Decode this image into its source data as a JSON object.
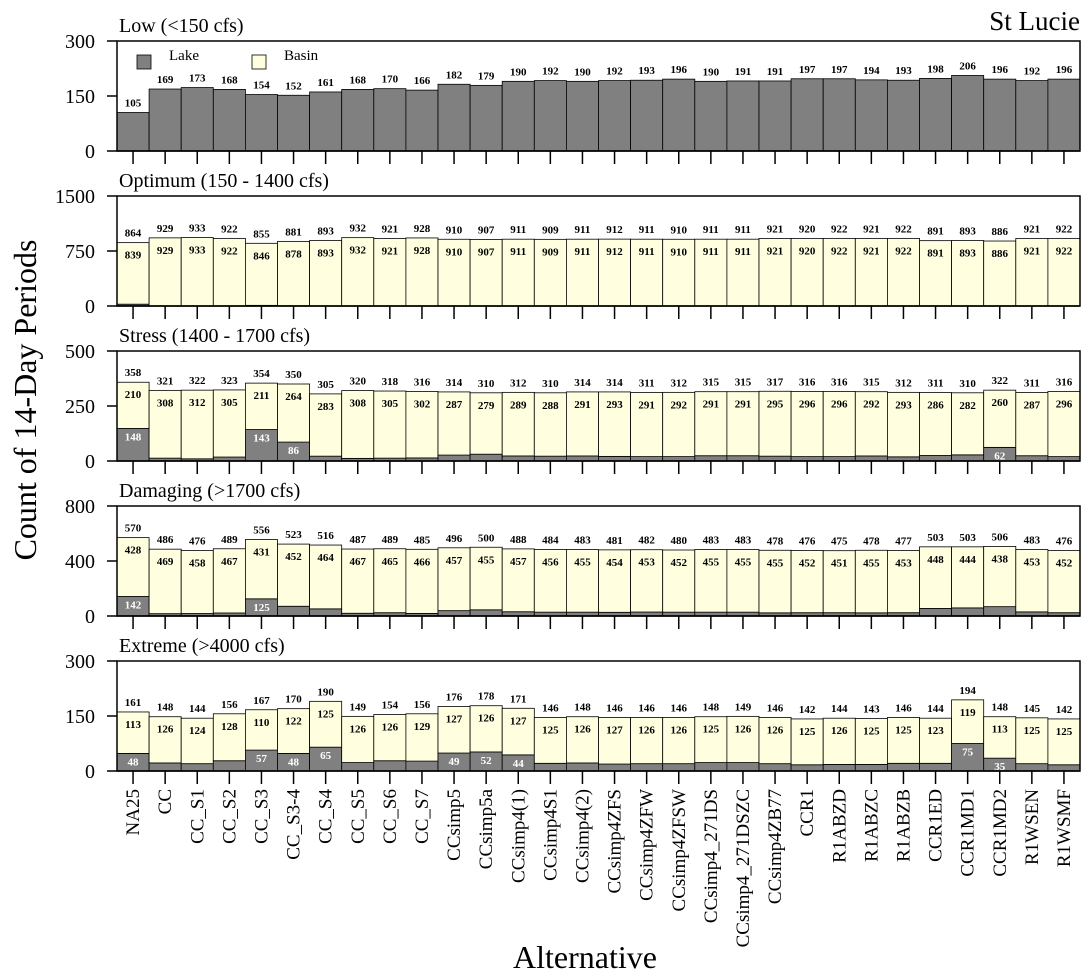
{
  "figure": {
    "title": "St Lucie",
    "ylabel": "Count of 14-Day Periods",
    "xlabel": "Alternative"
  },
  "chart_data": [
    {
      "type": "bar",
      "title": "Low (<150 cfs)",
      "ylim": [
        0,
        300
      ],
      "yticks": [
        0,
        150,
        300
      ],
      "legend": "upper left",
      "totals": [
        105,
        169,
        173,
        168,
        154,
        152,
        161,
        168,
        170,
        166,
        182,
        179,
        190,
        192,
        190,
        192,
        193,
        196,
        190,
        191,
        191,
        197,
        197,
        194,
        193,
        198,
        206,
        196,
        192,
        196
      ],
      "series": [
        {
          "name": "Lake",
          "color": "#808080",
          "values": [
            105,
            169,
            173,
            168,
            154,
            152,
            161,
            168,
            170,
            166,
            182,
            179,
            190,
            192,
            190,
            192,
            193,
            196,
            190,
            191,
            191,
            197,
            197,
            194,
            193,
            198,
            206,
            196,
            192,
            196
          ]
        },
        {
          "name": "Basin",
          "color": "#ffffe0",
          "values": [
            0,
            0,
            0,
            0,
            0,
            0,
            0,
            0,
            0,
            0,
            0,
            0,
            0,
            0,
            0,
            0,
            0,
            0,
            0,
            0,
            0,
            0,
            0,
            0,
            0,
            0,
            0,
            0,
            0,
            0
          ]
        }
      ]
    },
    {
      "type": "bar",
      "title": "Optimum (150 - 1400 cfs)",
      "ylim": [
        0,
        1500
      ],
      "yticks": [
        0,
        750,
        1500
      ],
      "totals": [
        864,
        929,
        933,
        922,
        855,
        881,
        893,
        932,
        921,
        928,
        910,
        907,
        911,
        909,
        911,
        912,
        911,
        910,
        911,
        911,
        921,
        920,
        922,
        921,
        922,
        891,
        893,
        886,
        921,
        922
      ],
      "series": [
        {
          "name": "Lake",
          "color": "#808080",
          "values": [
            25,
            0,
            0,
            0,
            9,
            3,
            0,
            0,
            0,
            0,
            0,
            0,
            0,
            0,
            0,
            0,
            0,
            0,
            0,
            0,
            0,
            0,
            0,
            0,
            0,
            0,
            0,
            0,
            0,
            0
          ]
        },
        {
          "name": "Basin",
          "color": "#ffffe0",
          "show_value_labels": true,
          "values": [
            839,
            929,
            933,
            922,
            846,
            878,
            893,
            932,
            921,
            928,
            910,
            907,
            911,
            909,
            911,
            912,
            911,
            910,
            911,
            911,
            921,
            920,
            922,
            921,
            922,
            891,
            893,
            886,
            921,
            922
          ]
        }
      ]
    },
    {
      "type": "bar",
      "title": "Stress (1400 - 1700 cfs)",
      "ylim": [
        0,
        500
      ],
      "yticks": [
        0,
        250,
        500
      ],
      "totals": [
        358,
        321,
        322,
        323,
        354,
        350,
        305,
        320,
        318,
        316,
        314,
        310,
        312,
        310,
        314,
        314,
        311,
        312,
        315,
        315,
        317,
        316,
        316,
        315,
        312,
        311,
        310,
        322,
        311,
        316
      ],
      "series": [
        {
          "name": "Lake",
          "color": "#808080",
          "values": [
            148,
            13,
            10,
            18,
            143,
            86,
            22,
            12,
            13,
            14,
            27,
            31,
            23,
            22,
            23,
            21,
            20,
            20,
            24,
            24,
            22,
            20,
            20,
            23,
            19,
            25,
            28,
            62,
            24,
            20
          ],
          "value_labels": [
            "148",
            null,
            null,
            null,
            "143",
            "86",
            null,
            null,
            null,
            null,
            null,
            null,
            null,
            null,
            null,
            null,
            null,
            null,
            null,
            null,
            null,
            null,
            null,
            null,
            null,
            null,
            null,
            "62",
            null,
            null
          ]
        },
        {
          "name": "Basin",
          "color": "#ffffe0",
          "show_value_labels": true,
          "values": [
            210,
            308,
            312,
            305,
            211,
            264,
            283,
            308,
            305,
            302,
            287,
            279,
            289,
            288,
            291,
            293,
            291,
            292,
            291,
            291,
            295,
            296,
            296,
            292,
            293,
            286,
            282,
            260,
            287,
            296
          ]
        }
      ]
    },
    {
      "type": "bar",
      "title": "Damaging (>1700 cfs)",
      "ylim": [
        0,
        800
      ],
      "yticks": [
        0,
        400,
        800
      ],
      "totals": [
        570,
        486,
        476,
        489,
        556,
        523,
        516,
        487,
        489,
        485,
        496,
        500,
        488,
        484,
        483,
        481,
        482,
        480,
        483,
        483,
        478,
        476,
        475,
        478,
        477,
        503,
        503,
        506,
        483,
        476
      ],
      "series": [
        {
          "name": "Lake",
          "color": "#808080",
          "values": [
            142,
            17,
            18,
            22,
            125,
            71,
            52,
            20,
            24,
            19,
            39,
            45,
            31,
            28,
            28,
            27,
            29,
            28,
            28,
            28,
            23,
            24,
            24,
            23,
            24,
            55,
            59,
            68,
            30,
            24
          ],
          "value_labels": [
            "142",
            null,
            null,
            null,
            "125",
            null,
            null,
            null,
            null,
            null,
            null,
            null,
            null,
            null,
            null,
            null,
            null,
            null,
            null,
            null,
            null,
            null,
            null,
            null,
            null,
            null,
            null,
            null,
            null,
            null
          ]
        },
        {
          "name": "Basin",
          "color": "#ffffe0",
          "show_value_labels": true,
          "values": [
            428,
            469,
            458,
            467,
            431,
            452,
            464,
            467,
            465,
            466,
            457,
            455,
            457,
            456,
            455,
            454,
            453,
            452,
            455,
            455,
            455,
            452,
            451,
            455,
            453,
            448,
            444,
            438,
            453,
            452
          ]
        }
      ]
    },
    {
      "type": "bar",
      "title": "Extreme (>4000 cfs)",
      "ylim": [
        0,
        300
      ],
      "yticks": [
        0,
        150,
        300
      ],
      "categories": [
        "NA25",
        "CC",
        "CC_S1",
        "CC_S2",
        "CC_S3",
        "CC_S3-4",
        "CC_S4",
        "CC_S5",
        "CC_S6",
        "CC_S7",
        "CCsimp5",
        "CCsimp5a",
        "CCsimp4(1)",
        "CCsimp4S1",
        "CCsimp4(2)",
        "CCsimp4ZFS",
        "CCsimp4ZFW",
        "CCsimp4ZFSW",
        "CCsimp4_271DS",
        "CCsimp4_271DSZC",
        "CCsimp4ZB77",
        "CCR1",
        "R1ABZD",
        "R1ABZC",
        "R1ABZB",
        "CCR1ED",
        "CCR1MD1",
        "CCR1MD2",
        "R1WSEN",
        "R1WSMF"
      ],
      "totals": [
        161,
        148,
        144,
        156,
        167,
        170,
        190,
        149,
        154,
        156,
        176,
        178,
        171,
        146,
        148,
        146,
        146,
        146,
        148,
        149,
        146,
        142,
        144,
        143,
        146,
        144,
        194,
        148,
        145,
        142
      ],
      "series": [
        {
          "name": "Lake",
          "color": "#808080",
          "values": [
            48,
            22,
            20,
            28,
            57,
            48,
            65,
            23,
            28,
            27,
            49,
            52,
            44,
            21,
            22,
            19,
            20,
            20,
            23,
            23,
            20,
            17,
            18,
            18,
            21,
            21,
            75,
            35,
            20,
            17
          ],
          "value_labels": [
            "48",
            null,
            null,
            null,
            "57",
            "48",
            "65",
            null,
            null,
            null,
            "49",
            "52",
            "44",
            null,
            null,
            null,
            null,
            null,
            null,
            null,
            null,
            null,
            null,
            null,
            null,
            null,
            "75",
            "35",
            null,
            null
          ]
        },
        {
          "name": "Basin",
          "color": "#ffffe0",
          "show_value_labels": true,
          "values": [
            113,
            126,
            124,
            128,
            110,
            122,
            125,
            126,
            126,
            129,
            127,
            126,
            127,
            125,
            126,
            127,
            126,
            126,
            125,
            126,
            126,
            125,
            126,
            125,
            125,
            123,
            119,
            113,
            125,
            125
          ]
        }
      ]
    }
  ]
}
